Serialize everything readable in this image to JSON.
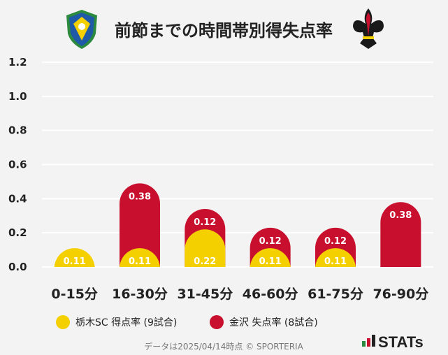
{
  "chart_data": {
    "type": "bar",
    "title": "前節までの時間帯別得失点率",
    "categories": [
      "0-15分",
      "16-30分",
      "31-45分",
      "46-60分",
      "61-75分",
      "76-90分"
    ],
    "ylim": [
      0,
      1.2
    ],
    "yticks": [
      "0.0",
      "0.2",
      "0.4",
      "0.6",
      "0.8",
      "1.0",
      "1.2"
    ],
    "series": [
      {
        "name": "栃木SC 得点率 (9試合)",
        "color": "#f5d000",
        "values": [
          0.11,
          0.11,
          0.22,
          0.11,
          0.11,
          0
        ],
        "labels": [
          "0.11",
          "0.11",
          "0.22",
          "0.11",
          "0.11",
          ""
        ]
      },
      {
        "name": "金沢 失点率 (8試合)",
        "color": "#c8102e",
        "values": [
          0,
          0.38,
          0.12,
          0.12,
          0.12,
          0.38
        ],
        "labels": [
          "",
          "0.38",
          "0.12",
          "0.12",
          "0.12",
          "0.38"
        ]
      }
    ],
    "stacked": true,
    "grid": true,
    "legend": "bottom"
  },
  "footer": "データは2025/04/14時点 © SPORTERIA",
  "brand": "STATs",
  "colors": {
    "background": "#f3f3f3",
    "grid": "#ffffff"
  },
  "logos": [
    "tochigi-sc-crest-icon",
    "zweigen-kanazawa-fleur-de-lis-icon"
  ]
}
